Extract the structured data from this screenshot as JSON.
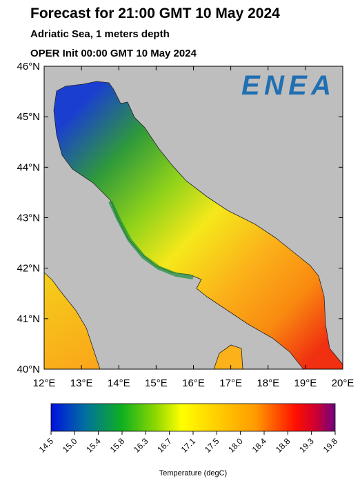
{
  "header": {
    "title": "Forecast for 21:00 GMT  10 May 2024",
    "subtitle": "Adriatic Sea, 1 meters depth",
    "init": "OPER Init 00:00 GMT  10 May 2024"
  },
  "map": {
    "logo": "ENEA",
    "lon_ticks": [
      "12°E",
      "13°E",
      "14°E",
      "15°E",
      "16°E",
      "17°E",
      "18°E",
      "19°E",
      "20°E"
    ],
    "lat_ticks": [
      "46°N",
      "45°N",
      "44°N",
      "43°N",
      "42°N",
      "41°N",
      "40°N"
    ]
  },
  "colorbar": {
    "labels": [
      "14.5",
      "15.0",
      "15.4",
      "15.8",
      "16.3",
      "16.7",
      "17.1",
      "17.5",
      "18.0",
      "18.4",
      "18.8",
      "19.3",
      "19.8"
    ],
    "title": "Temperature (degC)"
  }
}
